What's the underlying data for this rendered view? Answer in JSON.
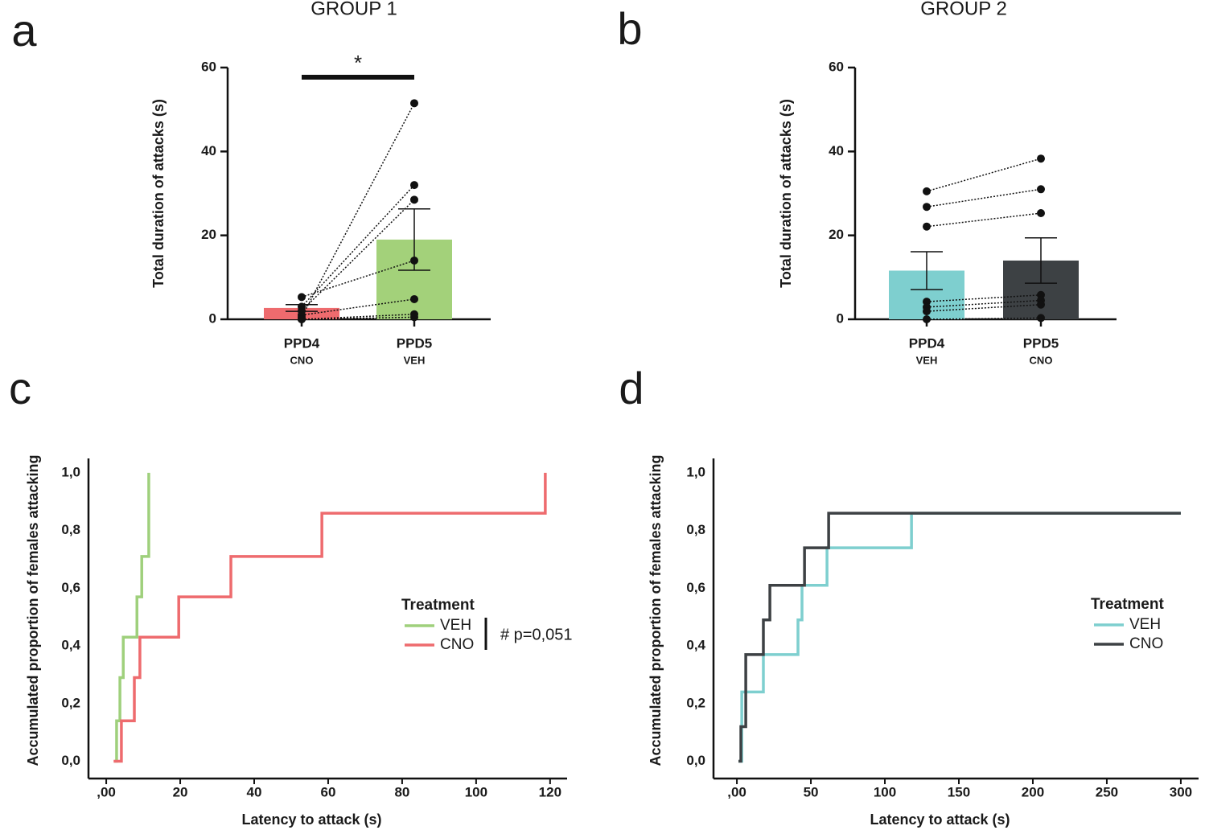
{
  "chart_data": [
    {
      "type": "bar",
      "panel": "a",
      "title": "GROUP 1",
      "ylabel": "Total duration of attacks (s)",
      "categories": [
        "PPD4",
        "PPD5"
      ],
      "category_sublabels": [
        "CNO",
        "VEH"
      ],
      "values": [
        2.7,
        19.0
      ],
      "errors": [
        0.8,
        7.3
      ],
      "colors": [
        "#ee6b6e",
        "#a3d17a"
      ],
      "points": [
        [
          0.5,
          3,
          2,
          5.3,
          1,
          0,
          0
        ],
        [
          51.5,
          32,
          28.5,
          14,
          4.8,
          1.2,
          0.5
        ]
      ],
      "significance": "*",
      "ylim": [
        0,
        60
      ],
      "yticks": [
        0,
        20,
        40,
        60
      ]
    },
    {
      "type": "bar",
      "panel": "b",
      "title": "GROUP 2",
      "ylabel": "Total duration of attacks (s)",
      "categories": [
        "PPD4",
        "PPD5"
      ],
      "category_sublabels": [
        "VEH",
        "CNO"
      ],
      "values": [
        11.6,
        14.0
      ],
      "errors": [
        4.5,
        5.4
      ],
      "colors": [
        "#7ecfcf",
        "#3d4144"
      ],
      "points": [
        [
          30.5,
          26.8,
          22.1,
          4.2,
          2.9,
          1.9,
          0
        ],
        [
          38.3,
          31,
          25.3,
          5.8,
          4.5,
          3.5,
          0.3
        ]
      ],
      "ylim": [
        0,
        60
      ],
      "yticks": [
        0,
        20,
        40,
        60
      ]
    },
    {
      "type": "step",
      "panel": "c",
      "xlabel": "Latency to attack (s)",
      "ylabel": "Accumulated proportion of females attacking",
      "legend_title": "Treatment",
      "annotation": "# p=0,051",
      "series": [
        {
          "name": "VEH",
          "color": "#9fd07c",
          "x": [
            2.2,
            2.8,
            3.7,
            4.6,
            8.3,
            9.6,
            11.5
          ],
          "values": [
            0,
            0.14,
            0.29,
            0.43,
            0.57,
            0.71,
            1.0
          ]
        },
        {
          "name": "CNO",
          "color": "#ee6b6e",
          "x": [
            2.0,
            4.1,
            7.6,
            9.1,
            19.6,
            33.7,
            58.3,
            118.7
          ],
          "values": [
            0,
            0.14,
            0.29,
            0.43,
            0.57,
            0.71,
            0.86,
            1.0
          ]
        }
      ],
      "xlim": [
        -4.8,
        124.6
      ],
      "xticks": [
        {
          "value": 0,
          "label": ",00"
        },
        20,
        40,
        60,
        80,
        100,
        120
      ],
      "ylim": [
        -0.06,
        1.05
      ],
      "yticks": [
        {
          "value": 0,
          "label": "0,0"
        },
        {
          "value": 0.2,
          "label": "0,2"
        },
        {
          "value": 0.4,
          "label": "0,4"
        },
        {
          "value": 0.6,
          "label": "0,6"
        },
        {
          "value": 0.8,
          "label": "0,8"
        },
        {
          "value": 1,
          "label": "1,0"
        }
      ]
    },
    {
      "type": "step",
      "panel": "d",
      "xlabel": "Latency to attack (s)",
      "ylabel": "Accumulated proportion of females attacking",
      "legend_title": "Treatment",
      "series": [
        {
          "name": "VEH",
          "color": "#7ecfcf",
          "x": [
            1.1,
            3.3,
            17.9,
            41.3,
            44,
            60.9,
            118,
            300
          ],
          "values": [
            0,
            0.24,
            0.37,
            0.49,
            0.61,
            0.74,
            0.86,
            0.86
          ]
        },
        {
          "name": "CNO",
          "color": "#3d4144",
          "x": [
            1.1,
            2.7,
            6.0,
            17.9,
            22.3,
            45.7,
            62,
            300
          ],
          "values": [
            0,
            0.12,
            0.37,
            0.49,
            0.61,
            0.74,
            0.86,
            0.86
          ]
        }
      ],
      "xlim": [
        -15.8,
        312
      ],
      "xticks": [
        {
          "value": 0,
          "label": ",00"
        },
        50,
        100,
        150,
        200,
        250,
        300
      ],
      "ylim": [
        -0.06,
        1.05
      ],
      "yticks": [
        {
          "value": 0,
          "label": "0,0"
        },
        {
          "value": 0.2,
          "label": "0,2"
        },
        {
          "value": 0.4,
          "label": "0,4"
        },
        {
          "value": 0.6,
          "label": "0,6"
        },
        {
          "value": 0.8,
          "label": "0,8"
        },
        {
          "value": 1,
          "label": "1,0"
        }
      ]
    }
  ]
}
